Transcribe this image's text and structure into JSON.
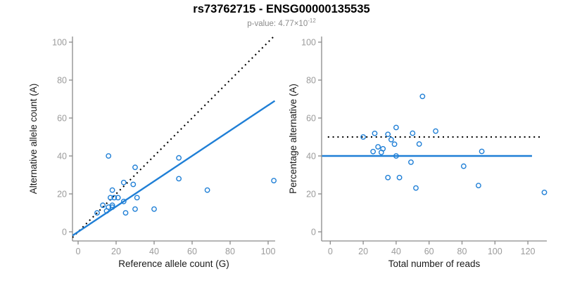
{
  "header": {
    "title": "rs73762715 - ENSG00000135535",
    "pvalue_text": "p-value: 4.77×10",
    "pvalue_exponent": "-12"
  },
  "colors": {
    "point_blue": "#1f7fd6",
    "fit_line_blue": "#1f7fd6",
    "reference_line_black": "#000000",
    "axis_gray": "#8a8a8a",
    "tick_label_gray": "#9b9b9b",
    "axis_title_color": "#1a1a1a",
    "subtitle_gray": "#8c8c8c",
    "background": "#ffffff"
  },
  "chart_data": [
    {
      "type": "scatter",
      "panel": "left",
      "xlabel": "Reference allele count (G)",
      "ylabel": "Alternative allele count (A)",
      "xticks": [
        0,
        20,
        40,
        60,
        80,
        100
      ],
      "yticks": [
        0,
        20,
        40,
        60,
        80,
        100
      ],
      "xlim": [
        0,
        103
      ],
      "ylim": [
        0,
        103
      ],
      "grid": false,
      "legend": false,
      "marker": "open-circle",
      "points": [
        [
          16,
          40
        ],
        [
          30,
          34
        ],
        [
          53,
          39
        ],
        [
          53,
          28
        ],
        [
          103,
          27
        ],
        [
          68,
          22
        ],
        [
          24,
          26
        ],
        [
          29,
          25
        ],
        [
          18,
          22
        ],
        [
          17,
          18
        ],
        [
          19,
          18
        ],
        [
          21,
          18
        ],
        [
          31,
          18
        ],
        [
          13,
          14
        ],
        [
          15,
          11
        ],
        [
          16,
          13
        ],
        [
          18,
          14
        ],
        [
          18,
          13
        ],
        [
          24,
          16
        ],
        [
          25,
          10
        ],
        [
          30,
          12
        ],
        [
          40,
          12
        ],
        [
          10,
          10
        ]
      ],
      "lines": [
        {
          "name": "identity-line",
          "style": "dotted",
          "slope": 1,
          "intercept": 0,
          "color": "#000000",
          "x_range": [
            -3,
            103.5
          ]
        },
        {
          "name": "fit-line",
          "style": "solid",
          "slope": 0.667,
          "intercept": 0,
          "color": "#1f7fd6",
          "x_range": [
            -3,
            103.5
          ]
        }
      ]
    },
    {
      "type": "scatter",
      "panel": "right",
      "xlabel": "Total number of reads",
      "ylabel": "Percentage alternative (A)",
      "xticks": [
        0,
        20,
        40,
        60,
        80,
        100,
        120
      ],
      "yticks": [
        0,
        20,
        40,
        60,
        80,
        100
      ],
      "xlim": [
        0,
        130
      ],
      "ylim": [
        0,
        100
      ],
      "grid": false,
      "legend": false,
      "marker": "open-circle",
      "points": [
        [
          56,
          71.4
        ],
        [
          64,
          53.1
        ],
        [
          92,
          42.4
        ],
        [
          81,
          34.6
        ],
        [
          130,
          20.8
        ],
        [
          90,
          24.4
        ],
        [
          50,
          52.0
        ],
        [
          54,
          46.3
        ],
        [
          40,
          55.0
        ],
        [
          35,
          51.4
        ],
        [
          37,
          48.6
        ],
        [
          39,
          46.2
        ],
        [
          49,
          36.7
        ],
        [
          27,
          51.9
        ],
        [
          26,
          42.3
        ],
        [
          29,
          44.8
        ],
        [
          32,
          43.8
        ],
        [
          31,
          41.9
        ],
        [
          40,
          40.0
        ],
        [
          35,
          28.6
        ],
        [
          42,
          28.6
        ],
        [
          52,
          23.1
        ],
        [
          20,
          50.0
        ]
      ],
      "lines": [
        {
          "name": "expected-50pct-line",
          "style": "dotted",
          "slope": 0,
          "intercept": 50,
          "color": "#000000",
          "x_range": [
            -1.5,
            127.5
          ]
        },
        {
          "name": "fit-40pct-line",
          "style": "solid",
          "slope": 0,
          "intercept": 40,
          "color": "#1f7fd6",
          "x_range": [
            -5,
            122.5
          ]
        }
      ]
    }
  ]
}
